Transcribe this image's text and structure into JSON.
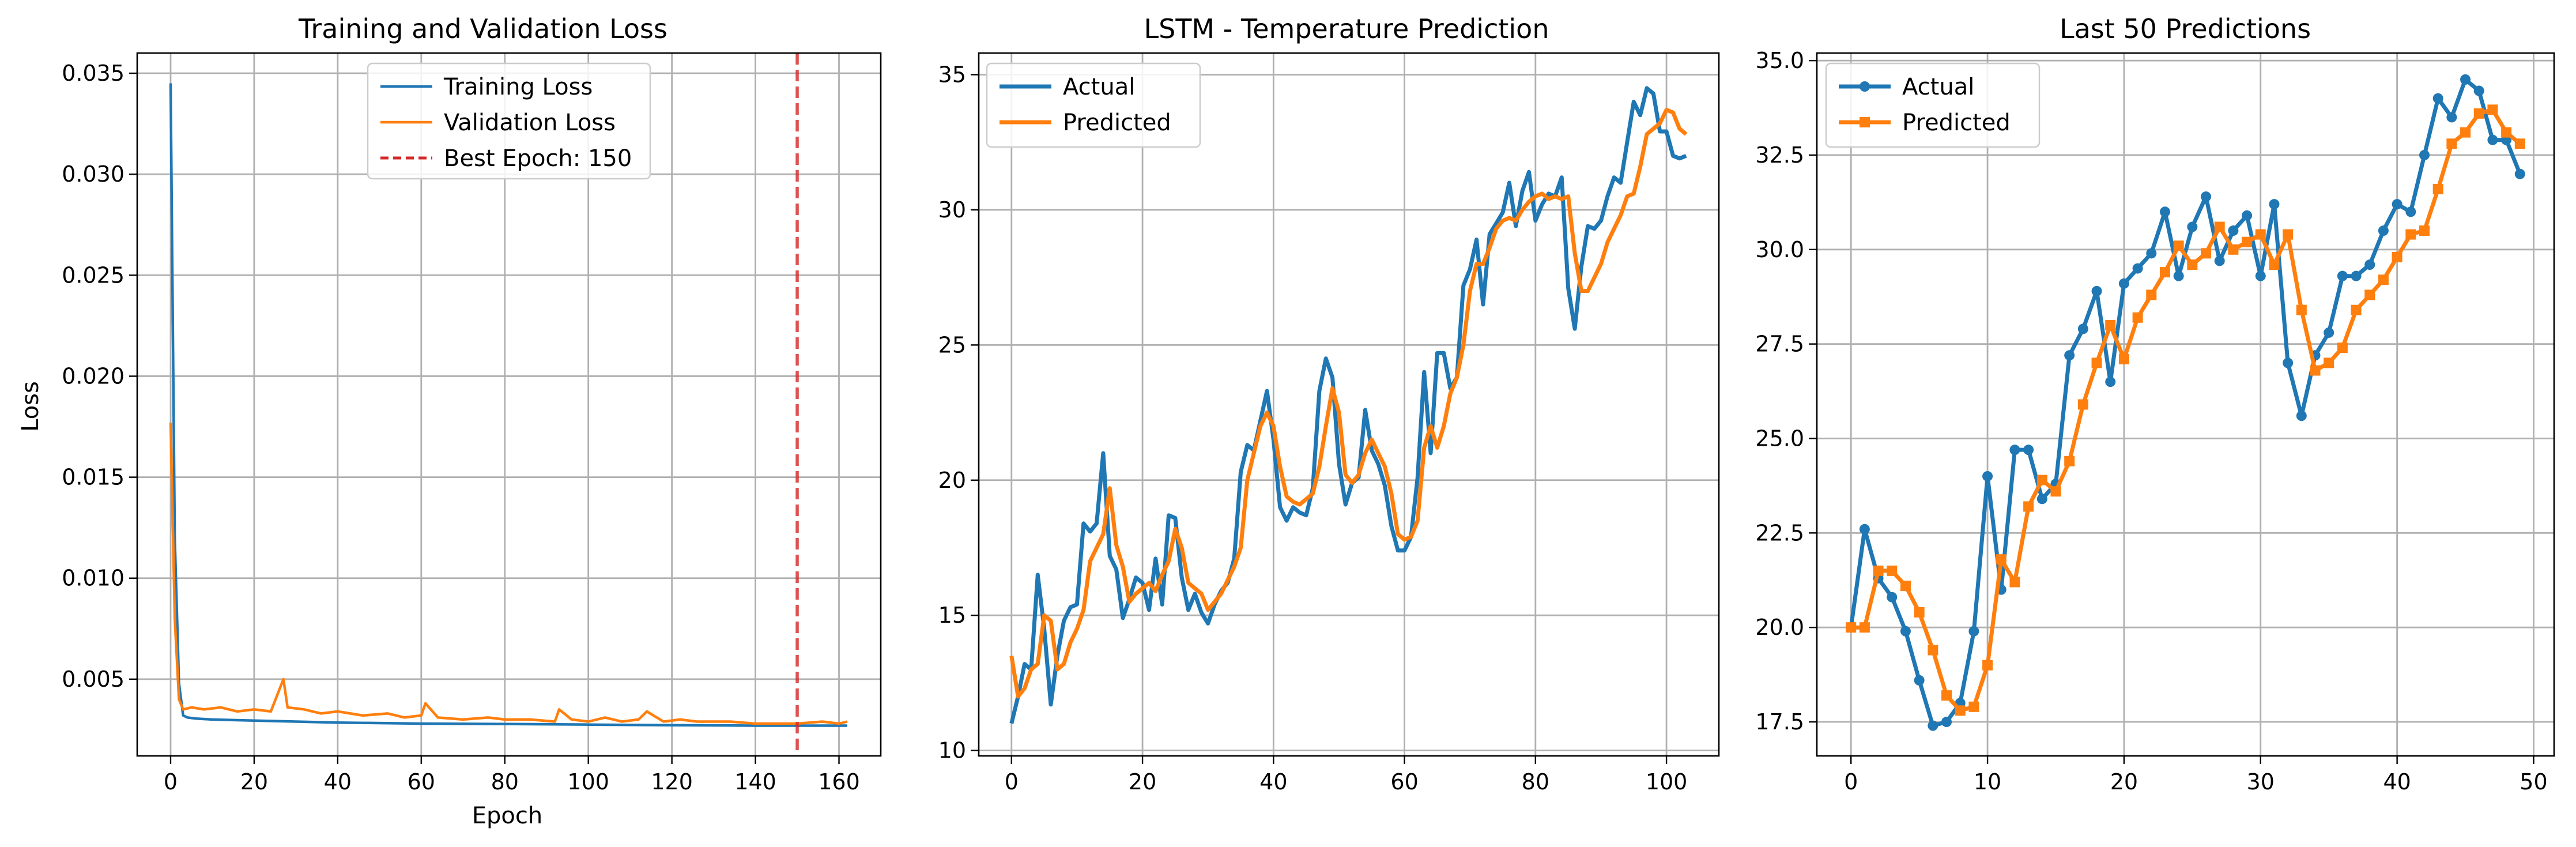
{
  "colors": {
    "blue": "#1f77b4",
    "orange": "#ff7f0e",
    "red": "#d62728",
    "grid": "#b0b0b0"
  },
  "chart_data": [
    {
      "type": "line",
      "title": "Training and Validation Loss",
      "xlabel": "Epoch",
      "ylabel": "Loss",
      "xlim": [
        -8,
        170
      ],
      "ylim": [
        0.0012,
        0.036
      ],
      "xticks": [
        0,
        20,
        40,
        60,
        80,
        100,
        120,
        140,
        160
      ],
      "yticks": [
        0.005,
        0.01,
        0.015,
        0.02,
        0.025,
        0.03,
        0.035
      ],
      "ytick_labels": [
        "0.005",
        "0.010",
        "0.015",
        "0.020",
        "0.025",
        "0.030",
        "0.035"
      ],
      "grid": true,
      "legend_position": "top-center",
      "series": [
        {
          "name": "Training Loss",
          "color": "#1f77b4",
          "x": [
            0,
            1,
            2,
            3,
            4,
            6,
            10,
            20,
            30,
            40,
            60,
            80,
            100,
            120,
            140,
            150,
            162
          ],
          "y": [
            0.0345,
            0.012,
            0.0048,
            0.0032,
            0.0031,
            0.00305,
            0.003,
            0.00295,
            0.0029,
            0.00285,
            0.0028,
            0.00278,
            0.00275,
            0.00272,
            0.0027,
            0.0027,
            0.0027
          ]
        },
        {
          "name": "Validation Loss",
          "color": "#ff7f0e",
          "x": [
            0,
            1,
            2,
            3,
            5,
            8,
            12,
            16,
            20,
            24,
            27,
            28,
            32,
            36,
            40,
            46,
            52,
            56,
            60,
            61,
            64,
            70,
            76,
            80,
            86,
            92,
            93,
            96,
            100,
            104,
            108,
            112,
            114,
            118,
            122,
            126,
            130,
            134,
            140,
            146,
            150,
            156,
            160,
            162
          ],
          "y": [
            0.0177,
            0.008,
            0.004,
            0.0035,
            0.0036,
            0.0035,
            0.0036,
            0.0034,
            0.0035,
            0.0034,
            0.005,
            0.0036,
            0.0035,
            0.0033,
            0.0034,
            0.0032,
            0.0033,
            0.0031,
            0.0032,
            0.0038,
            0.0031,
            0.003,
            0.0031,
            0.003,
            0.003,
            0.0029,
            0.0035,
            0.003,
            0.0029,
            0.0031,
            0.0029,
            0.003,
            0.0034,
            0.0029,
            0.003,
            0.0029,
            0.0029,
            0.0029,
            0.0028,
            0.0028,
            0.0028,
            0.0029,
            0.0028,
            0.0029
          ]
        },
        {
          "name": "Best Epoch: 150",
          "color": "#d62728",
          "style": "dashed",
          "vline_x": 150
        }
      ]
    },
    {
      "type": "line",
      "title": "LSTM - Temperature Prediction",
      "xlabel": "",
      "ylabel": "",
      "xlim": [
        -5,
        108
      ],
      "ylim": [
        9.8,
        35.8
      ],
      "xticks": [
        0,
        20,
        40,
        60,
        80,
        100
      ],
      "yticks": [
        10,
        15,
        20,
        25,
        30,
        35
      ],
      "ytick_labels": [
        "10",
        "15",
        "20",
        "25",
        "30",
        "35"
      ],
      "grid": true,
      "legend_position": "top-left",
      "series": [
        {
          "name": "Actual",
          "color": "#1f77b4",
          "x": [
            0,
            1,
            2,
            3,
            4,
            5,
            6,
            7,
            8,
            9,
            10,
            11,
            12,
            13,
            14,
            15,
            16,
            17,
            18,
            19,
            20,
            21,
            22,
            23,
            24,
            25,
            26,
            27,
            28,
            29,
            30,
            31,
            32,
            33,
            34,
            35,
            36,
            37,
            38,
            39,
            40,
            41,
            42,
            43,
            44,
            45,
            46,
            47,
            48,
            49,
            50,
            51,
            52,
            53,
            54,
            55,
            56,
            57,
            58,
            59,
            60,
            61,
            62,
            63,
            64,
            65,
            66,
            67,
            68,
            69,
            70,
            71,
            72,
            73,
            74,
            75,
            76,
            77,
            78,
            79,
            80,
            81,
            82,
            83,
            84,
            85,
            86,
            87,
            88,
            89,
            90,
            91,
            92,
            93,
            94,
            95,
            96,
            97,
            98,
            99,
            100,
            101,
            102,
            103
          ],
          "y": [
            11.0,
            12.0,
            13.2,
            13.0,
            16.5,
            14.5,
            11.7,
            13.5,
            14.8,
            15.3,
            15.4,
            18.4,
            18.1,
            18.4,
            21.0,
            17.2,
            16.7,
            14.9,
            15.6,
            16.4,
            16.2,
            15.2,
            17.1,
            15.4,
            18.7,
            18.6,
            16.4,
            15.2,
            15.8,
            15.1,
            14.7,
            15.4,
            15.9,
            16.2,
            17.1,
            20.3,
            21.3,
            21.1,
            22.2,
            23.3,
            21.5,
            19.0,
            18.5,
            19.0,
            18.8,
            18.7,
            19.7,
            23.3,
            24.5,
            23.8,
            20.6,
            19.1,
            19.9,
            20.1,
            22.6,
            21.1,
            20.6,
            19.8,
            18.3,
            17.4,
            17.4,
            17.9,
            20.1,
            24.0,
            21.0,
            24.7,
            24.7,
            23.4,
            23.8,
            27.2,
            27.8,
            28.9,
            26.5,
            29.1,
            29.5,
            29.9,
            31.0,
            29.4,
            30.7,
            31.4,
            29.6,
            30.2,
            30.6,
            30.5,
            31.2,
            27.1,
            25.6,
            27.9,
            29.4,
            29.3,
            29.6,
            30.5,
            31.2,
            31.0,
            32.5,
            34.0,
            33.5,
            34.5,
            34.3,
            32.9,
            32.9,
            32.0,
            31.9,
            32.0
          ]
        },
        {
          "name": "Predicted",
          "color": "#ff7f0e",
          "x": [
            0,
            1,
            2,
            3,
            4,
            5,
            6,
            7,
            8,
            9,
            10,
            11,
            12,
            13,
            14,
            15,
            16,
            17,
            18,
            19,
            20,
            21,
            22,
            23,
            24,
            25,
            26,
            27,
            28,
            29,
            30,
            31,
            32,
            33,
            34,
            35,
            36,
            37,
            38,
            39,
            40,
            41,
            42,
            43,
            44,
            45,
            46,
            47,
            48,
            49,
            50,
            51,
            52,
            53,
            54,
            55,
            56,
            57,
            58,
            59,
            60,
            61,
            62,
            63,
            64,
            65,
            66,
            67,
            68,
            69,
            70,
            71,
            72,
            73,
            74,
            75,
            76,
            77,
            78,
            79,
            80,
            81,
            82,
            83,
            84,
            85,
            86,
            87,
            88,
            89,
            90,
            91,
            92,
            93,
            94,
            95,
            96,
            97,
            98,
            99,
            100,
            101,
            102,
            103
          ],
          "y": [
            13.5,
            12.0,
            12.3,
            13.0,
            13.2,
            15.0,
            14.8,
            13.0,
            13.2,
            14.0,
            14.5,
            15.2,
            17.0,
            17.5,
            18.0,
            19.7,
            17.6,
            16.8,
            15.5,
            15.8,
            16.0,
            16.2,
            15.9,
            16.5,
            17.0,
            18.2,
            17.5,
            16.2,
            16.0,
            15.8,
            15.2,
            15.5,
            15.8,
            16.3,
            16.8,
            17.5,
            20.0,
            21.0,
            22.0,
            22.5,
            22.0,
            20.5,
            19.4,
            19.2,
            19.1,
            19.3,
            19.5,
            20.5,
            22.0,
            23.4,
            22.5,
            20.2,
            19.9,
            20.2,
            21.0,
            21.5,
            21.0,
            20.5,
            19.5,
            18.0,
            17.8,
            17.9,
            18.5,
            21.2,
            22.0,
            21.2,
            22.0,
            23.2,
            23.8,
            25.0,
            27.0,
            28.0,
            28.0,
            28.6,
            29.3,
            29.6,
            29.7,
            29.6,
            30.0,
            30.3,
            30.5,
            30.6,
            30.4,
            30.5,
            30.4,
            30.5,
            28.4,
            27.0,
            27.0,
            27.5,
            28.0,
            28.8,
            29.3,
            29.8,
            30.5,
            30.6,
            31.6,
            32.8,
            33.0,
            33.2,
            33.7,
            33.6,
            33.0,
            32.8
          ]
        }
      ]
    },
    {
      "type": "line",
      "title": "Last 50 Predictions",
      "xlabel": "",
      "ylabel": "",
      "xlim": [
        -2.5,
        51.5
      ],
      "ylim": [
        16.6,
        35.2
      ],
      "xticks": [
        0,
        10,
        20,
        30,
        40,
        50
      ],
      "yticks": [
        17.5,
        20.0,
        22.5,
        25.0,
        27.5,
        30.0,
        32.5,
        35.0
      ],
      "ytick_labels": [
        "17.5",
        "20.0",
        "22.5",
        "25.0",
        "27.5",
        "30.0",
        "32.5",
        "35.0"
      ],
      "grid": true,
      "legend_position": "top-left",
      "series": [
        {
          "name": "Actual",
          "color": "#1f77b4",
          "marker": "circle",
          "x": [
            0,
            1,
            2,
            3,
            4,
            5,
            6,
            7,
            8,
            9,
            10,
            11,
            12,
            13,
            14,
            15,
            16,
            17,
            18,
            19,
            20,
            21,
            22,
            23,
            24,
            25,
            26,
            27,
            28,
            29,
            30,
            31,
            32,
            33,
            34,
            35,
            36,
            37,
            38,
            39,
            40,
            41,
            42,
            43,
            44,
            45,
            46,
            47,
            48,
            49
          ],
          "y": [
            20.0,
            22.6,
            21.3,
            20.8,
            19.9,
            18.6,
            17.4,
            17.5,
            18.0,
            19.9,
            24.0,
            21.0,
            24.7,
            24.7,
            23.4,
            23.8,
            27.2,
            27.9,
            28.9,
            26.5,
            29.1,
            29.5,
            29.9,
            31.0,
            29.3,
            30.6,
            31.4,
            29.7,
            30.5,
            30.9,
            29.3,
            31.2,
            27.0,
            25.6,
            27.2,
            27.8,
            29.3,
            29.3,
            29.6,
            30.5,
            31.2,
            31.0,
            32.5,
            34.0,
            33.5,
            34.5,
            34.2,
            32.9,
            32.9,
            32.0
          ]
        },
        {
          "name": "Predicted",
          "color": "#ff7f0e",
          "marker": "square",
          "x": [
            0,
            1,
            2,
            3,
            4,
            5,
            6,
            7,
            8,
            9,
            10,
            11,
            12,
            13,
            14,
            15,
            16,
            17,
            18,
            19,
            20,
            21,
            22,
            23,
            24,
            25,
            26,
            27,
            28,
            29,
            30,
            31,
            32,
            33,
            34,
            35,
            36,
            37,
            38,
            39,
            40,
            41,
            42,
            43,
            44,
            45,
            46,
            47,
            48,
            49
          ],
          "y": [
            20.0,
            20.0,
            21.5,
            21.5,
            21.1,
            20.4,
            19.4,
            18.2,
            17.8,
            17.9,
            19.0,
            21.8,
            21.2,
            23.2,
            23.9,
            23.6,
            24.4,
            25.9,
            27.0,
            28.0,
            27.1,
            28.2,
            28.8,
            29.4,
            30.1,
            29.6,
            29.9,
            30.6,
            30.0,
            30.2,
            30.4,
            29.6,
            30.4,
            28.4,
            26.8,
            27.0,
            27.4,
            28.4,
            28.8,
            29.2,
            29.8,
            30.4,
            30.5,
            31.6,
            32.8,
            33.1,
            33.6,
            33.7,
            33.1,
            32.8
          ]
        }
      ]
    }
  ]
}
